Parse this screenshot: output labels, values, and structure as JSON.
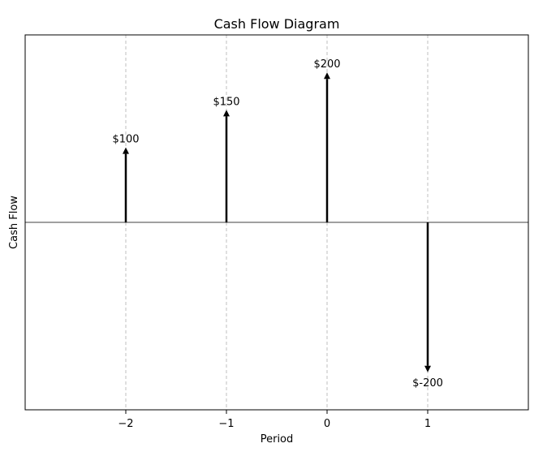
{
  "chart_data": {
    "type": "bar",
    "title": "Cash Flow Diagram",
    "xlabel": "Period",
    "ylabel": "Cash Flow",
    "x": [
      -2,
      -1,
      0,
      1
    ],
    "values": [
      100,
      150,
      200,
      -200
    ],
    "labels": [
      "$100",
      "$150",
      "$200",
      "$-200"
    ],
    "x_ticks": [
      -2,
      -1,
      0,
      1
    ],
    "x_tick_labels": [
      "−2",
      "−1",
      "0",
      "1"
    ],
    "xlim": [
      -3,
      2
    ],
    "ylim": [
      -250,
      250
    ],
    "grid": "x-dashed",
    "marker": "arrow",
    "colors": {
      "arrow": "#000000",
      "grid": "#b0b0b0",
      "zero_line": "#000000"
    }
  }
}
